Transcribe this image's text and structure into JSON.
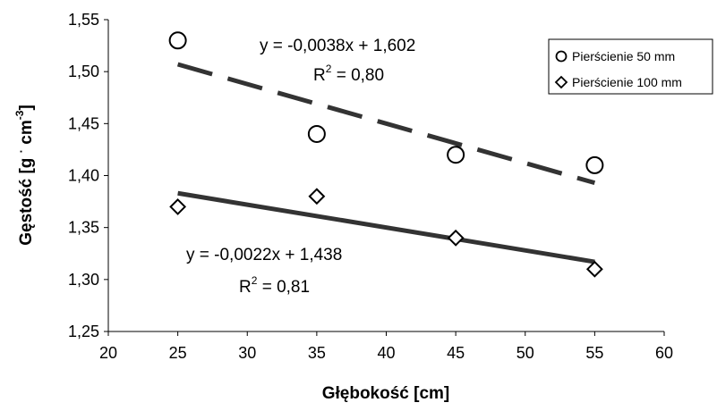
{
  "chart_data": {
    "type": "scatter",
    "title": "",
    "xlabel": "Głębokość [cm]",
    "ylabel_main": "Gęstość [g ",
    "ylabel_dot": "·",
    "ylabel_unit": " cm",
    "ylabel_sup": "-3",
    "ylabel_close": "]",
    "xlim": [
      20,
      60
    ],
    "ylim": [
      1.25,
      1.55
    ],
    "xticks": [
      20,
      25,
      30,
      35,
      40,
      45,
      50,
      55,
      60
    ],
    "yticks": [
      1.25,
      1.3,
      1.35,
      1.4,
      1.45,
      1.5,
      1.55
    ],
    "xtick_labels": [
      "20",
      "25",
      "30",
      "35",
      "40",
      "45",
      "50",
      "55",
      "60"
    ],
    "ytick_labels": [
      "1,25",
      "1,30",
      "1,35",
      "1,40",
      "1,45",
      "1,50",
      "1,55"
    ],
    "grid": false,
    "legend_position": "top-right",
    "series": [
      {
        "name": "Pierścienie 50 mm",
        "marker": "circle",
        "x": [
          25,
          35,
          45,
          55
        ],
        "y": [
          1.53,
          1.44,
          1.42,
          1.41
        ],
        "trendline": {
          "slope": -0.0038,
          "intercept": 1.602,
          "style": "dashed",
          "x_range": [
            25,
            55
          ]
        },
        "equation": "y = -0,0038x + 1,602",
        "r2_prefix": "R",
        "r2_sup": "2",
        "r2_value": " = 0,80"
      },
      {
        "name": "Pierścienie 100 mm",
        "marker": "diamond",
        "x": [
          25,
          35,
          45,
          55
        ],
        "y": [
          1.37,
          1.38,
          1.34,
          1.31
        ],
        "trendline": {
          "slope": -0.0022,
          "intercept": 1.438,
          "style": "solid",
          "x_range": [
            25,
            55
          ]
        },
        "equation": "y = -0,0022x + 1,438",
        "r2_prefix": "R",
        "r2_sup": "2",
        "r2_value": " = 0,81"
      }
    ],
    "colors": {
      "line": "#333333",
      "marker_fill": "#ffffff",
      "marker_stroke": "#000000"
    }
  }
}
